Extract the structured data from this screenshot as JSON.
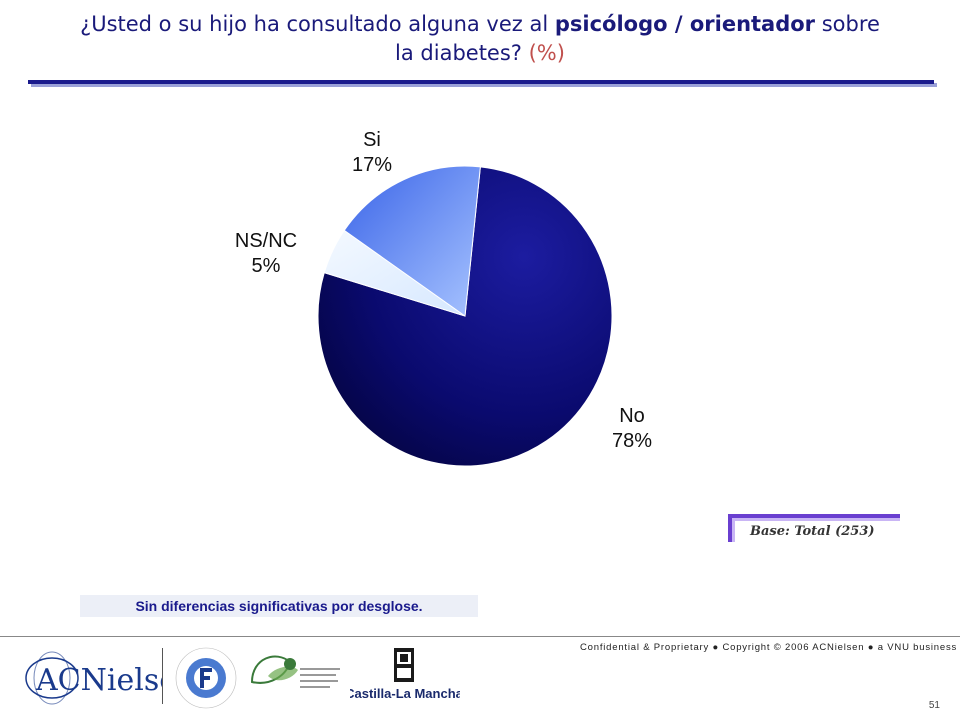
{
  "header": {
    "title_part1": "¿Usted o su hijo ha consultado alguna vez al ",
    "title_bold": "psicólogo / orientador",
    "title_part2": " sobre",
    "title_line2": "la diabetes? ",
    "title_pct": "(%)"
  },
  "chart_data": {
    "type": "pie",
    "slices": [
      {
        "label": "No",
        "value": 78,
        "value_label": "78%",
        "color": "#0a0a6e"
      },
      {
        "label": "NS/NC",
        "value": 5,
        "value_label": "5%",
        "color": "#e6f2ff"
      },
      {
        "label": "Si",
        "value": 17,
        "value_label": "17%",
        "color": "#4a7cf0"
      }
    ],
    "unit": "%"
  },
  "base_note": "Base: Total (253)",
  "footnote": "Sin diferencias significativas por desglose.",
  "footer": {
    "confidential": "Confidential & Proprietary ● Copyright © 2006 ACNielsen ● a VNU business",
    "page_number": "51",
    "logos": {
      "acnielsen": "ACNielsen",
      "fundacion": "FUNDACION PARA LA DIABETES",
      "fundacion_clm": "FUNDACIÓN de CASTILLA-LA MANCHA para la DIABETES",
      "castilla": "Castilla-La Mancha"
    }
  }
}
